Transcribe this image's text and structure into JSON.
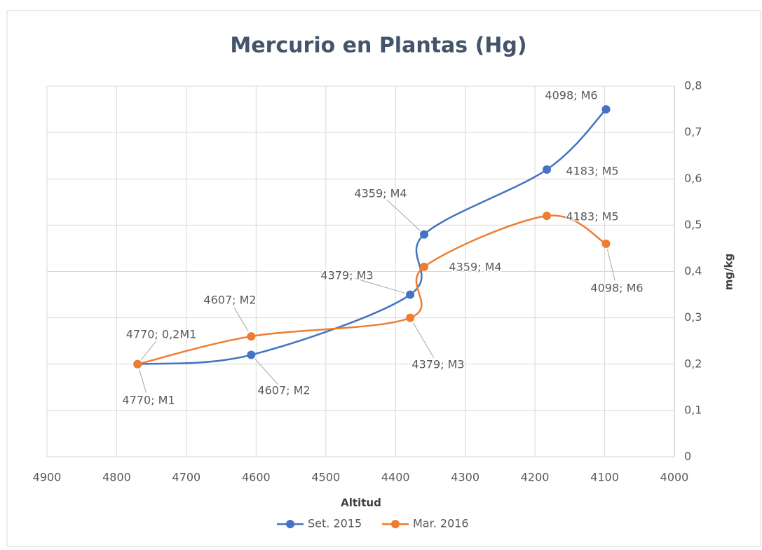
{
  "chart_data": {
    "type": "line",
    "title": "Mercurio en Plantas (Hg)",
    "x_label": "Altitud",
    "y_label": "mg/kg",
    "x": [
      4770,
      4607,
      4379,
      4359,
      4183,
      4098
    ],
    "xlim": [
      4900,
      4000
    ],
    "xticks": [
      4900,
      4800,
      4700,
      4600,
      4500,
      4400,
      4300,
      4200,
      4100,
      4000
    ],
    "ylim": [
      0,
      0.8
    ],
    "yticks": [
      0,
      {
        "value": 0.1,
        "label": "0,1"
      },
      {
        "value": 0.2,
        "label": "0,2"
      },
      {
        "value": 0.3,
        "label": "0,3"
      },
      {
        "value": 0.4,
        "label": "0,4"
      },
      {
        "value": 0.5,
        "label": "0,5"
      },
      {
        "value": 0.6,
        "label": "0,6"
      },
      {
        "value": 0.7,
        "label": "0,7"
      },
      {
        "value": 0.8,
        "label": "0,8"
      }
    ],
    "y_axis_side": "right",
    "grid": true,
    "smooth": true,
    "legend": "bottom",
    "series": [
      {
        "name": "Set. 2015",
        "color": "#4472c4",
        "values": [
          0.2,
          0.22,
          0.35,
          0.48,
          0.62,
          0.75
        ],
        "value_labels": [
          "4770; M1",
          "4607; M2",
          "4379; M3",
          "4359; M4",
          "4183; M5",
          "4098; M6"
        ]
      },
      {
        "name": "Mar. 2016",
        "color": "#ed7d31",
        "values": [
          0.2,
          0.26,
          0.3,
          0.41,
          0.52,
          0.46
        ],
        "value_labels": [
          "4770; 0,2M1",
          "4607; M2",
          "4379; M3",
          "4359; M4",
          "4183; M5",
          "4098; M6"
        ]
      }
    ]
  }
}
